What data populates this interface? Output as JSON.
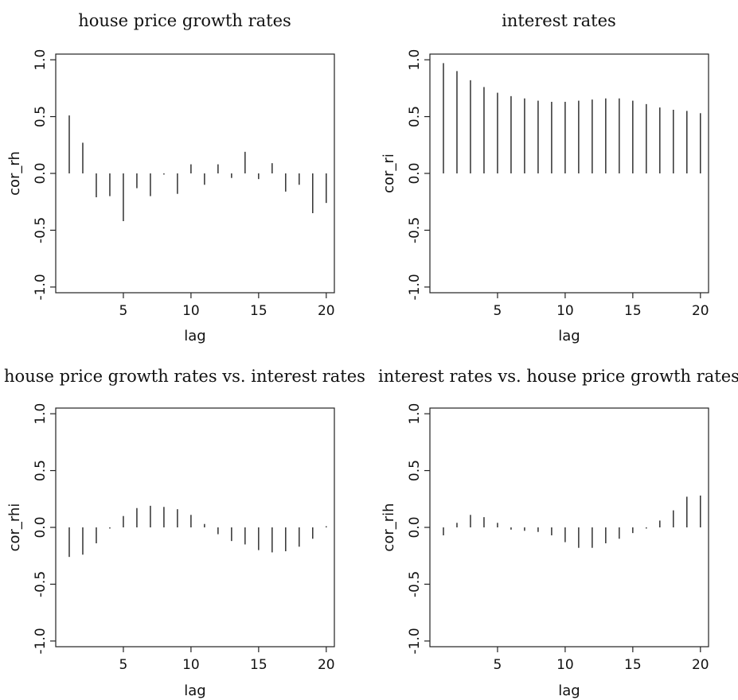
{
  "chart_data": [
    {
      "type": "bar",
      "title": "house price growth rates",
      "xlabel": "lag",
      "ylabel": "cor_rh",
      "x": [
        1,
        2,
        3,
        4,
        5,
        6,
        7,
        8,
        9,
        10,
        11,
        12,
        13,
        14,
        15,
        16,
        17,
        18,
        19,
        20
      ],
      "values": [
        0.51,
        0.27,
        -0.21,
        -0.2,
        -0.42,
        -0.13,
        -0.2,
        -0.01,
        -0.18,
        0.08,
        -0.1,
        0.08,
        -0.04,
        0.19,
        -0.05,
        0.09,
        -0.16,
        -0.1,
        -0.35,
        -0.26
      ],
      "xlim": [
        0,
        20.6
      ],
      "ylim": [
        -1.05,
        1.05
      ],
      "xticks": [
        5,
        10,
        15,
        20
      ],
      "yticks": [
        -1.0,
        -0.5,
        0.0,
        0.5,
        1.0
      ],
      "xtick_labels": [
        "5",
        "10",
        "15",
        "20"
      ],
      "ytick_labels": [
        "-1.0",
        "-0.5",
        "0.0",
        "0.5",
        "1.0"
      ]
    },
    {
      "type": "bar",
      "title": "interest rates",
      "xlabel": "lag",
      "ylabel": "cor_ri",
      "x": [
        1,
        2,
        3,
        4,
        5,
        6,
        7,
        8,
        9,
        10,
        11,
        12,
        13,
        14,
        15,
        16,
        17,
        18,
        19,
        20
      ],
      "values": [
        0.97,
        0.9,
        0.82,
        0.76,
        0.71,
        0.68,
        0.66,
        0.64,
        0.63,
        0.63,
        0.64,
        0.65,
        0.66,
        0.66,
        0.64,
        0.61,
        0.58,
        0.56,
        0.55,
        0.53
      ],
      "xlim": [
        0,
        20.6
      ],
      "ylim": [
        -1.05,
        1.05
      ],
      "xticks": [
        5,
        10,
        15,
        20
      ],
      "yticks": [
        -1.0,
        -0.5,
        0.0,
        0.5,
        1.0
      ],
      "xtick_labels": [
        "5",
        "10",
        "15",
        "20"
      ],
      "ytick_labels": [
        "-1.0",
        "-0.5",
        "0.0",
        "0.5",
        "1.0"
      ]
    },
    {
      "type": "bar",
      "title": "house price growth rates vs. interest rates",
      "xlabel": "lag",
      "ylabel": "cor_rhi",
      "x": [
        1,
        2,
        3,
        4,
        5,
        6,
        7,
        8,
        9,
        10,
        11,
        12,
        13,
        14,
        15,
        16,
        17,
        18,
        19,
        20
      ],
      "values": [
        -0.26,
        -0.24,
        -0.14,
        -0.01,
        0.1,
        0.17,
        0.19,
        0.18,
        0.16,
        0.11,
        0.03,
        -0.06,
        -0.12,
        -0.15,
        -0.2,
        -0.22,
        -0.21,
        -0.17,
        -0.1,
        0.01
      ],
      "xlim": [
        0,
        20.6
      ],
      "ylim": [
        -1.05,
        1.05
      ],
      "xticks": [
        5,
        10,
        15,
        20
      ],
      "yticks": [
        -1.0,
        -0.5,
        0.0,
        0.5,
        1.0
      ],
      "xtick_labels": [
        "5",
        "10",
        "15",
        "20"
      ],
      "ytick_labels": [
        "-1.0",
        "-0.5",
        "0.0",
        "0.5",
        "1.0"
      ]
    },
    {
      "type": "bar",
      "title": "interest rates vs. house price growth rates",
      "xlabel": "lag",
      "ylabel": "cor_rih",
      "x": [
        1,
        2,
        3,
        4,
        5,
        6,
        7,
        8,
        9,
        10,
        11,
        12,
        13,
        14,
        15,
        16,
        17,
        18,
        19,
        20
      ],
      "values": [
        -0.07,
        0.04,
        0.11,
        0.09,
        0.04,
        -0.02,
        -0.03,
        -0.04,
        -0.07,
        -0.13,
        -0.18,
        -0.18,
        -0.14,
        -0.1,
        -0.05,
        -0.01,
        0.06,
        0.15,
        0.27,
        0.28
      ],
      "xlim": [
        0,
        20.6
      ],
      "ylim": [
        -1.05,
        1.05
      ],
      "xticks": [
        5,
        10,
        15,
        20
      ],
      "yticks": [
        -1.0,
        -0.5,
        0.0,
        0.5,
        1.0
      ],
      "xtick_labels": [
        "5",
        "10",
        "15",
        "20"
      ],
      "ytick_labels": [
        "-1.0",
        "-0.5",
        "0.0",
        "0.5",
        "1.0"
      ]
    }
  ]
}
